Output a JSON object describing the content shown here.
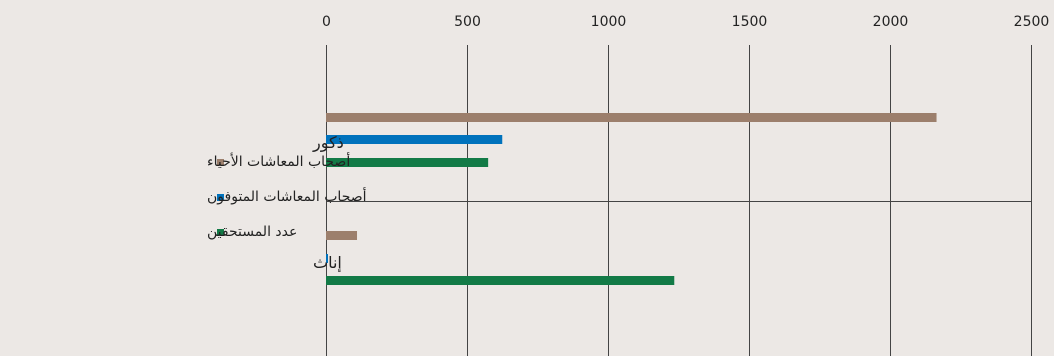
{
  "chart_data": {
    "type": "bar",
    "orientation": "horizontal",
    "categories": [
      "ذكور",
      "إناث"
    ],
    "series": [
      {
        "name": "أصحاب المعاشات الأحياء",
        "color": "#9c7f6c",
        "values": [
          2165,
          110
        ]
      },
      {
        "name": "أصحاب المعاشات المتوفون",
        "color": "#0072bc",
        "values": [
          625,
          5
        ]
      },
      {
        "name": "عدد المستحقين",
        "color": "#127a46",
        "values": [
          575,
          1235
        ]
      }
    ],
    "xlim": [
      0,
      2500
    ],
    "xticks": [
      0,
      500,
      1000,
      1500,
      2000,
      2500
    ],
    "x_axis_position": "top",
    "grid": true,
    "legend_position": "left"
  }
}
